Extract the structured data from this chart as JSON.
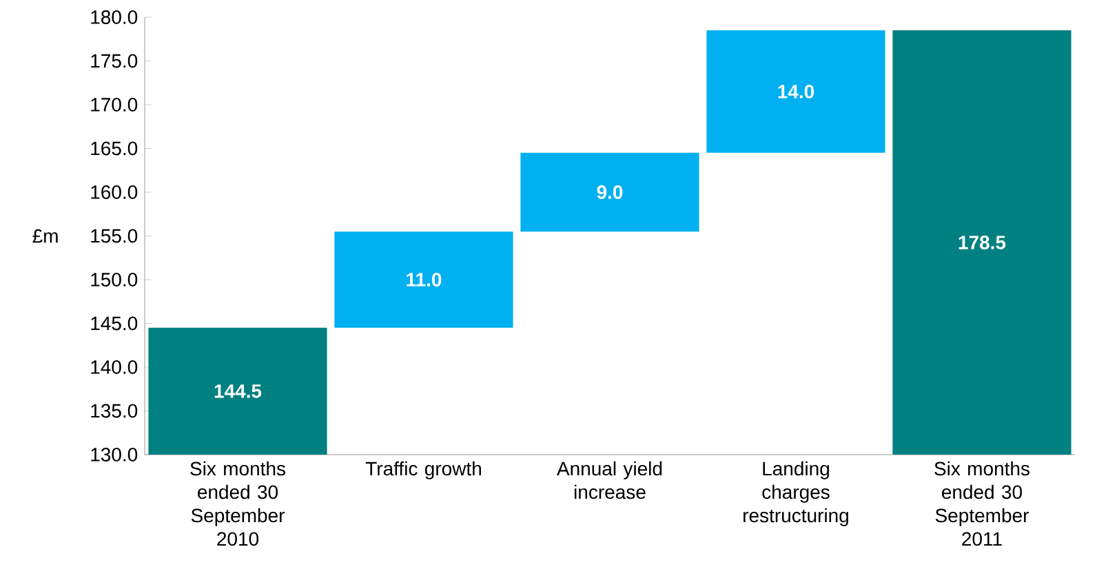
{
  "chart_data": {
    "type": "bar",
    "ylabel": "£m",
    "categories": [
      "Six months ended 30 September 2010",
      "Traffic growth",
      "Annual yield increase",
      "Landing charges restructuring",
      "Six months ended 30 September 2011"
    ],
    "values": [
      144.5,
      11.0,
      9.0,
      14.0,
      178.5
    ],
    "base": [
      null,
      144.5,
      155.5,
      164.5,
      null
    ],
    "colors": [
      "#008080",
      "#00b0f0",
      "#00b0f0",
      "#00b0f0",
      "#008080"
    ],
    "value_labels": [
      "144.5",
      "11.0",
      "9.0",
      "14.0",
      "178.5"
    ],
    "ylim": [
      130,
      180
    ],
    "yticks": [
      {
        "value": 130,
        "label": "130.0"
      },
      {
        "value": 135,
        "label": "135.0"
      },
      {
        "value": 140,
        "label": "140.0"
      },
      {
        "value": 145,
        "label": "145.0"
      },
      {
        "value": 150,
        "label": "150.0"
      },
      {
        "value": 155,
        "label": "155.0"
      },
      {
        "value": 160,
        "label": "160.0"
      },
      {
        "value": 165,
        "label": "165.0"
      },
      {
        "value": 170,
        "label": "170.0"
      },
      {
        "value": 175,
        "label": "175.0"
      },
      {
        "value": 180,
        "label": "180.0"
      }
    ],
    "grid": false
  }
}
